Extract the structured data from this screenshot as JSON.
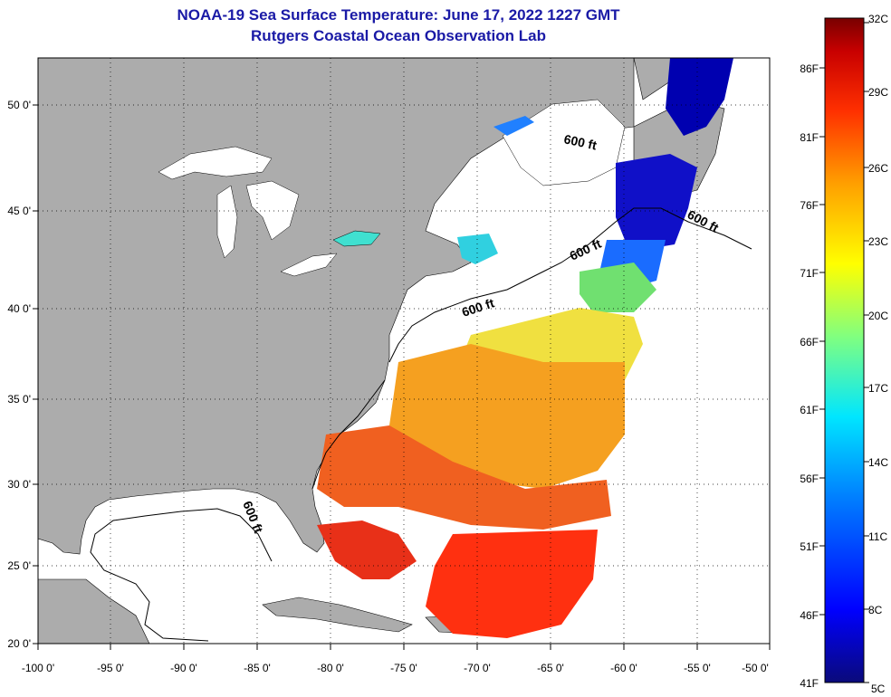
{
  "header": {
    "title": "NOAA-19 Sea Surface Temperature:  June 17, 2022 1227 GMT",
    "subtitle": "Rutgers Coastal Ocean Observation Lab"
  },
  "map": {
    "lon_ticks": [
      "-100 0'",
      "-95 0'",
      "-90 0'",
      "-85 0'",
      "-80 0'",
      "-75 0'",
      "-70 0'",
      "-65 0'",
      "-60 0'",
      "-55 0'",
      "-50 0'"
    ],
    "lat_ticks": [
      "50 0'",
      "45 0'",
      "40 0'",
      "35 0'",
      "30 0'",
      "25 0'",
      "20 0'"
    ],
    "contour_label": "600 ft",
    "colors": {
      "land": "#acacac",
      "ocean_nodata": "#ffffff",
      "grid": "#000000"
    }
  },
  "colorbar": {
    "celsius": [
      "32C",
      "29C",
      "26C",
      "23C",
      "20C",
      "17C",
      "14C",
      "11C",
      "8C",
      "5C"
    ],
    "fahrenheit": [
      "86F",
      "81F",
      "76F",
      "71F",
      "66F",
      "61F",
      "56F",
      "51F",
      "46F",
      "41F"
    ],
    "gradient": [
      "#0a0a7a",
      "#0000ff",
      "#0080ff",
      "#00e6ff",
      "#80ff80",
      "#ffff00",
      "#ffa000",
      "#ff3000",
      "#c80000",
      "#780000"
    ]
  }
}
